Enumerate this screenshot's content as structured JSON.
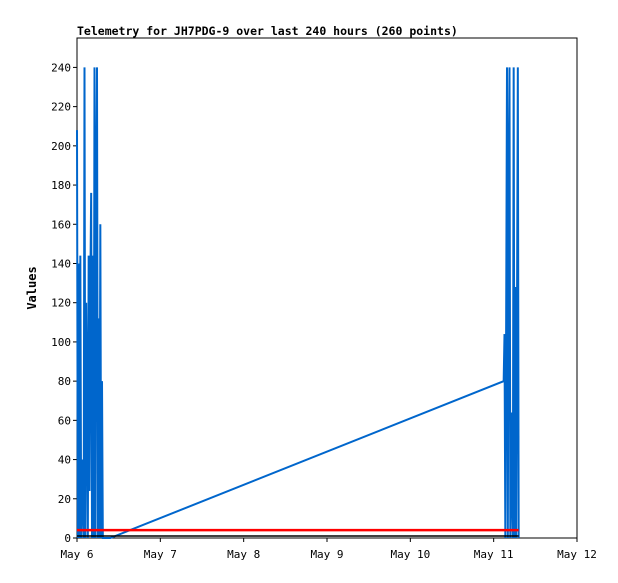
{
  "chart_data": {
    "type": "line",
    "title": "Telemetry for JH7PDG-9 over last 240 hours (260 points)",
    "ylabel": "Values",
    "xlabel": "",
    "x_ticks": [
      "May 6",
      "May 7",
      "May 8",
      "May 9",
      "May 10",
      "May 11",
      "May 12"
    ],
    "x_range_days": [
      6,
      12
    ],
    "ylim": [
      0,
      255
    ],
    "y_ticks": [
      0,
      20,
      40,
      60,
      80,
      100,
      120,
      140,
      160,
      180,
      200,
      220,
      240
    ],
    "grid": false,
    "legend": "none",
    "colors": {
      "series_blue": "#0066cc",
      "series_red": "#ff0000",
      "series_black": "#000000"
    },
    "series": [
      {
        "color": "#0066cc",
        "x": [
          6.0,
          6.01,
          6.02,
          6.03,
          6.04,
          6.05,
          6.06,
          6.07,
          6.08,
          6.09,
          6.1,
          6.11,
          6.12,
          6.13,
          6.14,
          6.15,
          6.16,
          6.17,
          6.18,
          6.19,
          6.2,
          6.21,
          6.22,
          6.23,
          6.24,
          6.25,
          6.26,
          6.27,
          6.28,
          6.29,
          6.3,
          6.31,
          6.32,
          6.33,
          6.34,
          6.35,
          6.36,
          6.37,
          6.38,
          6.4,
          11.12,
          11.13,
          11.14,
          11.15,
          11.16,
          11.17,
          11.18,
          11.19,
          11.2,
          11.21,
          11.22,
          11.23,
          11.24,
          11.25,
          11.26,
          11.27,
          11.28,
          11.29,
          11.3
        ],
        "values": [
          208,
          0,
          140,
          0,
          144,
          0,
          16,
          40,
          0,
          240,
          0,
          120,
          72,
          0,
          144,
          24,
          128,
          176,
          0,
          144,
          0,
          240,
          0,
          176,
          240,
          0,
          112,
          0,
          160,
          0,
          80,
          0,
          0,
          0,
          0,
          0,
          0,
          0,
          0,
          0,
          80,
          104,
          0,
          112,
          240,
          0,
          180,
          240,
          0,
          64,
          24,
          0,
          240,
          0,
          128,
          0,
          112,
          240,
          0
        ]
      },
      {
        "color": "#ff0000",
        "x": [
          6.0,
          11.3
        ],
        "values": [
          4,
          4
        ]
      },
      {
        "color": "#000000",
        "x": [
          6.0,
          11.3
        ],
        "values": [
          1,
          1
        ]
      }
    ]
  }
}
